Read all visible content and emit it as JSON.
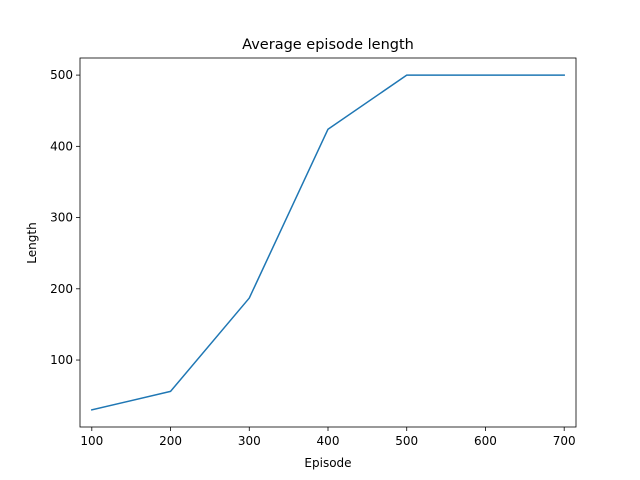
{
  "chart_data": {
    "type": "line",
    "title": "Average episode length",
    "xlabel": "Episode",
    "ylabel": "Length",
    "xlim": [
      85,
      715
    ],
    "ylim": [
      6,
      524
    ],
    "x_ticks": [
      100,
      200,
      300,
      400,
      500,
      600,
      700
    ],
    "y_ticks": [
      100,
      200,
      300,
      400,
      500
    ],
    "grid": false,
    "legend": null,
    "series": [
      {
        "color": "#1f77b4",
        "x": [
          100,
          200,
          300,
          400,
          500,
          600,
          700
        ],
        "y": [
          30,
          56,
          187,
          424,
          500,
          500,
          500
        ]
      }
    ]
  }
}
